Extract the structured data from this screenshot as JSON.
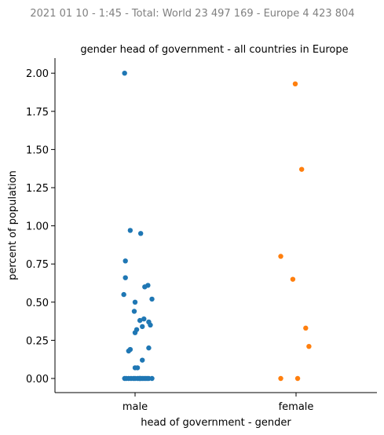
{
  "header": {
    "suptitle": "2021 01 10 - 1:45 - Total: World 23 497 169 - Europe 4 423 804"
  },
  "chart_data": {
    "type": "scatter",
    "subtype": "stripplot",
    "title": "gender head of government - all countries in Europe",
    "xlabel": "head of government - gender",
    "ylabel": "percent of population",
    "categories": [
      "male",
      "female"
    ],
    "ylim": [
      -0.1,
      2.1
    ],
    "yticks": [
      "0.00",
      "0.25",
      "0.50",
      "0.75",
      "1.00",
      "1.25",
      "1.50",
      "1.75",
      "2.00"
    ],
    "grid": false,
    "colors": {
      "male": "#1f77b4",
      "female": "#ff7f0e"
    },
    "series": [
      {
        "category": "male",
        "values": [
          2.0,
          0.97,
          0.95,
          0.77,
          0.66,
          0.61,
          0.6,
          0.55,
          0.52,
          0.5,
          0.44,
          0.39,
          0.38,
          0.37,
          0.35,
          0.34,
          0.32,
          0.3,
          0.2,
          0.19,
          0.18,
          0.12,
          0.07,
          0.07,
          0.0,
          0.0,
          0.0,
          0.0,
          0.0,
          0.0,
          0.0,
          0.0,
          0.0,
          0.0,
          0.0,
          0.0,
          0.0,
          0.0,
          0.0,
          0.0
        ],
        "jitter": [
          -0.13,
          -0.06,
          0.07,
          -0.12,
          -0.12,
          0.16,
          0.12,
          -0.14,
          0.21,
          0.0,
          -0.01,
          0.11,
          0.06,
          0.17,
          0.19,
          0.09,
          0.02,
          0.0,
          0.17,
          -0.06,
          -0.08,
          0.09,
          0.0,
          0.03,
          -0.13,
          -0.11,
          -0.05,
          -0.02,
          0.0,
          0.03,
          0.05,
          0.07,
          0.09,
          0.11,
          0.13,
          0.15,
          0.17,
          0.21,
          0.06,
          -0.08
        ]
      },
      {
        "category": "female",
        "values": [
          1.93,
          1.37,
          0.8,
          0.65,
          0.33,
          0.21,
          0.0,
          0.0
        ],
        "jitter": [
          -0.01,
          0.07,
          -0.19,
          -0.04,
          0.12,
          0.16,
          -0.19,
          0.02
        ]
      }
    ]
  }
}
